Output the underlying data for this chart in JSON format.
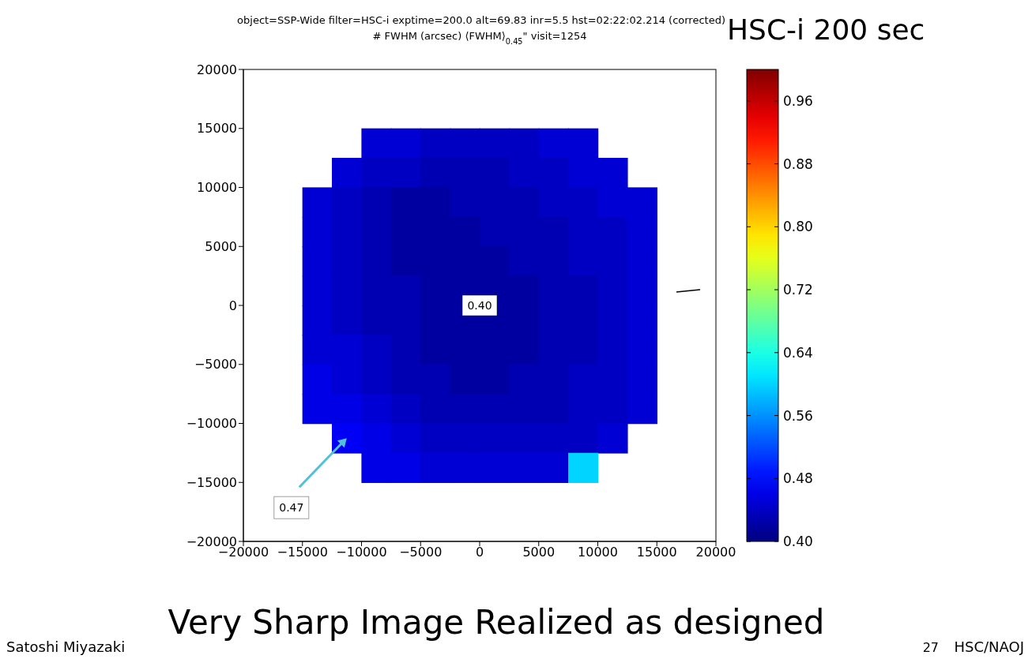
{
  "chart_data": {
    "type": "scatter",
    "title": "object=SSP-Wide filter=HSC-i exptime=200.0 alt=69.83 inr=5.5 hst=02:22:02.214 (corrected)",
    "subtitle": "# FWHM (arcsec) ⟨FWHM⟩$_{0.45}$\" visit=1254",
    "marker": "square",
    "x": [
      -8750,
      -6250,
      -3750,
      -1250,
      1250,
      3750,
      6250,
      8750,
      -11250,
      -8750,
      -6250,
      -3750,
      -1250,
      1250,
      3750,
      6250,
      8750,
      11250,
      -13750,
      -11250,
      -8750,
      -6250,
      -3750,
      -1250,
      1250,
      3750,
      6250,
      8750,
      11250,
      13750,
      -13750,
      -11250,
      -8750,
      -6250,
      -3750,
      -1250,
      1250,
      3750,
      6250,
      8750,
      11250,
      13750,
      -13750,
      -11250,
      -8750,
      -6250,
      -3750,
      -1250,
      1250,
      3750,
      6250,
      8750,
      11250,
      13750,
      -13750,
      -11250,
      -8750,
      -6250,
      -3750,
      -1250,
      1250,
      3750,
      6250,
      8750,
      11250,
      13750,
      -13750,
      -11250,
      -8750,
      -6250,
      -3750,
      -1250,
      1250,
      3750,
      6250,
      8750,
      11250,
      13750,
      -13750,
      -11250,
      -8750,
      -6250,
      -3750,
      -1250,
      1250,
      3750,
      6250,
      8750,
      11250,
      13750,
      -13750,
      -11250,
      -8750,
      -6250,
      -3750,
      -1250,
      1250,
      3750,
      6250,
      8750,
      11250,
      13750,
      -13750,
      -11250,
      -8750,
      -6250,
      -3750,
      -1250,
      1250,
      3750,
      6250,
      8750,
      11250,
      13750,
      -11250,
      -8750,
      -6250,
      -3750,
      -1250,
      1250,
      3750,
      6250,
      8750,
      11250,
      -8750,
      -6250,
      -3750,
      -1250,
      1250,
      3750,
      6250,
      8750
    ],
    "values": [
      13750,
      13750,
      13750,
      13750,
      13750,
      13750,
      13750,
      13750,
      11250,
      11250,
      11250,
      11250,
      11250,
      11250,
      11250,
      11250,
      11250,
      11250,
      8750,
      8750,
      8750,
      8750,
      8750,
      8750,
      8750,
      8750,
      8750,
      8750,
      8750,
      8750,
      6250,
      6250,
      6250,
      6250,
      6250,
      6250,
      6250,
      6250,
      6250,
      6250,
      6250,
      6250,
      3750,
      3750,
      3750,
      3750,
      3750,
      3750,
      3750,
      3750,
      3750,
      3750,
      3750,
      3750,
      1250,
      1250,
      1250,
      1250,
      1250,
      1250,
      1250,
      1250,
      1250,
      1250,
      1250,
      1250,
      -1250,
      -1250,
      -1250,
      -1250,
      -1250,
      -1250,
      -1250,
      -1250,
      -1250,
      -1250,
      -1250,
      -1250,
      -3750,
      -3750,
      -3750,
      -3750,
      -3750,
      -3750,
      -3750,
      -3750,
      -3750,
      -3750,
      -3750,
      -3750,
      -6250,
      -6250,
      -6250,
      -6250,
      -6250,
      -6250,
      -6250,
      -6250,
      -6250,
      -6250,
      -6250,
      -6250,
      -8750,
      -8750,
      -8750,
      -8750,
      -8750,
      -8750,
      -8750,
      -8750,
      -8750,
      -8750,
      -8750,
      -8750,
      -11250,
      -11250,
      -11250,
      -11250,
      -11250,
      -11250,
      -11250,
      -11250,
      -11250,
      -11250,
      -13750,
      -13750,
      -13750,
      -13750,
      -13750,
      -13750,
      -13750,
      -13750
    ],
    "cvalues": [
      0.45,
      0.45,
      0.44,
      0.44,
      0.44,
      0.44,
      0.45,
      0.45,
      0.45,
      0.44,
      0.44,
      0.43,
      0.43,
      0.43,
      0.44,
      0.44,
      0.45,
      0.45,
      0.45,
      0.44,
      0.43,
      0.42,
      0.42,
      0.43,
      0.43,
      0.43,
      0.44,
      0.44,
      0.45,
      0.45,
      0.45,
      0.44,
      0.43,
      0.42,
      0.42,
      0.42,
      0.43,
      0.43,
      0.43,
      0.44,
      0.44,
      0.45,
      0.45,
      0.44,
      0.43,
      0.42,
      0.42,
      0.42,
      0.42,
      0.43,
      0.43,
      0.44,
      0.44,
      0.45,
      0.45,
      0.44,
      0.43,
      0.43,
      0.42,
      0.42,
      0.42,
      0.42,
      0.43,
      0.43,
      0.44,
      0.45,
      0.45,
      0.44,
      0.43,
      0.43,
      0.42,
      0.42,
      0.42,
      0.42,
      0.43,
      0.43,
      0.44,
      0.45,
      0.45,
      0.45,
      0.44,
      0.43,
      0.42,
      0.42,
      0.42,
      0.42,
      0.43,
      0.43,
      0.44,
      0.45,
      0.46,
      0.45,
      0.44,
      0.43,
      0.43,
      0.42,
      0.42,
      0.43,
      0.43,
      0.44,
      0.44,
      0.45,
      0.46,
      0.46,
      0.45,
      0.44,
      0.43,
      0.43,
      0.43,
      0.43,
      0.43,
      0.44,
      0.44,
      0.45,
      0.47,
      0.46,
      0.45,
      0.44,
      0.44,
      0.44,
      0.44,
      0.44,
      0.44,
      0.45,
      0.46,
      0.46,
      0.45,
      0.45,
      0.45,
      0.45,
      0.45,
      0.6
    ],
    "xlim": [
      -20000,
      20000
    ],
    "xticks": [
      {
        "value": -20000,
        "label": "−20000"
      },
      {
        "value": -15000,
        "label": "−15000"
      },
      {
        "value": -10000,
        "label": "−10000"
      },
      {
        "value": -5000,
        "label": "−5000"
      },
      0,
      5000,
      10000,
      15000,
      20000
    ],
    "ylim": [
      -20000,
      20000
    ],
    "yticks": [
      {
        "value": -20000,
        "label": "−20000"
      },
      {
        "value": -15000,
        "label": "−15000"
      },
      {
        "value": -10000,
        "label": "−10000"
      },
      {
        "value": -5000,
        "label": "−5000"
      },
      0,
      5000,
      10000,
      15000,
      20000
    ],
    "clim": [
      0.4,
      1.0
    ],
    "cticks": [
      {
        "value": 0.4,
        "label": "0.40"
      },
      {
        "value": 0.48,
        "label": "0.48"
      },
      {
        "value": 0.56,
        "label": "0.56"
      },
      {
        "value": 0.64,
        "label": "0.64"
      },
      {
        "value": 0.72,
        "label": "0.72"
      },
      {
        "value": 0.8,
        "label": "0.80"
      },
      {
        "value": 0.88,
        "label": "0.88"
      },
      {
        "value": 0.96,
        "label": "0.96"
      }
    ],
    "annotations": [
      {
        "text": "0.40",
        "x": 0,
        "y": 0
      },
      {
        "text": "0.47",
        "x": -11250,
        "y": -11250
      },
      "HSC-i 200 sec",
      "Very Sharp Image Realized as designed",
      "Satoshi Miyazaki",
      "27",
      "HSC/NAOJ"
    ]
  }
}
